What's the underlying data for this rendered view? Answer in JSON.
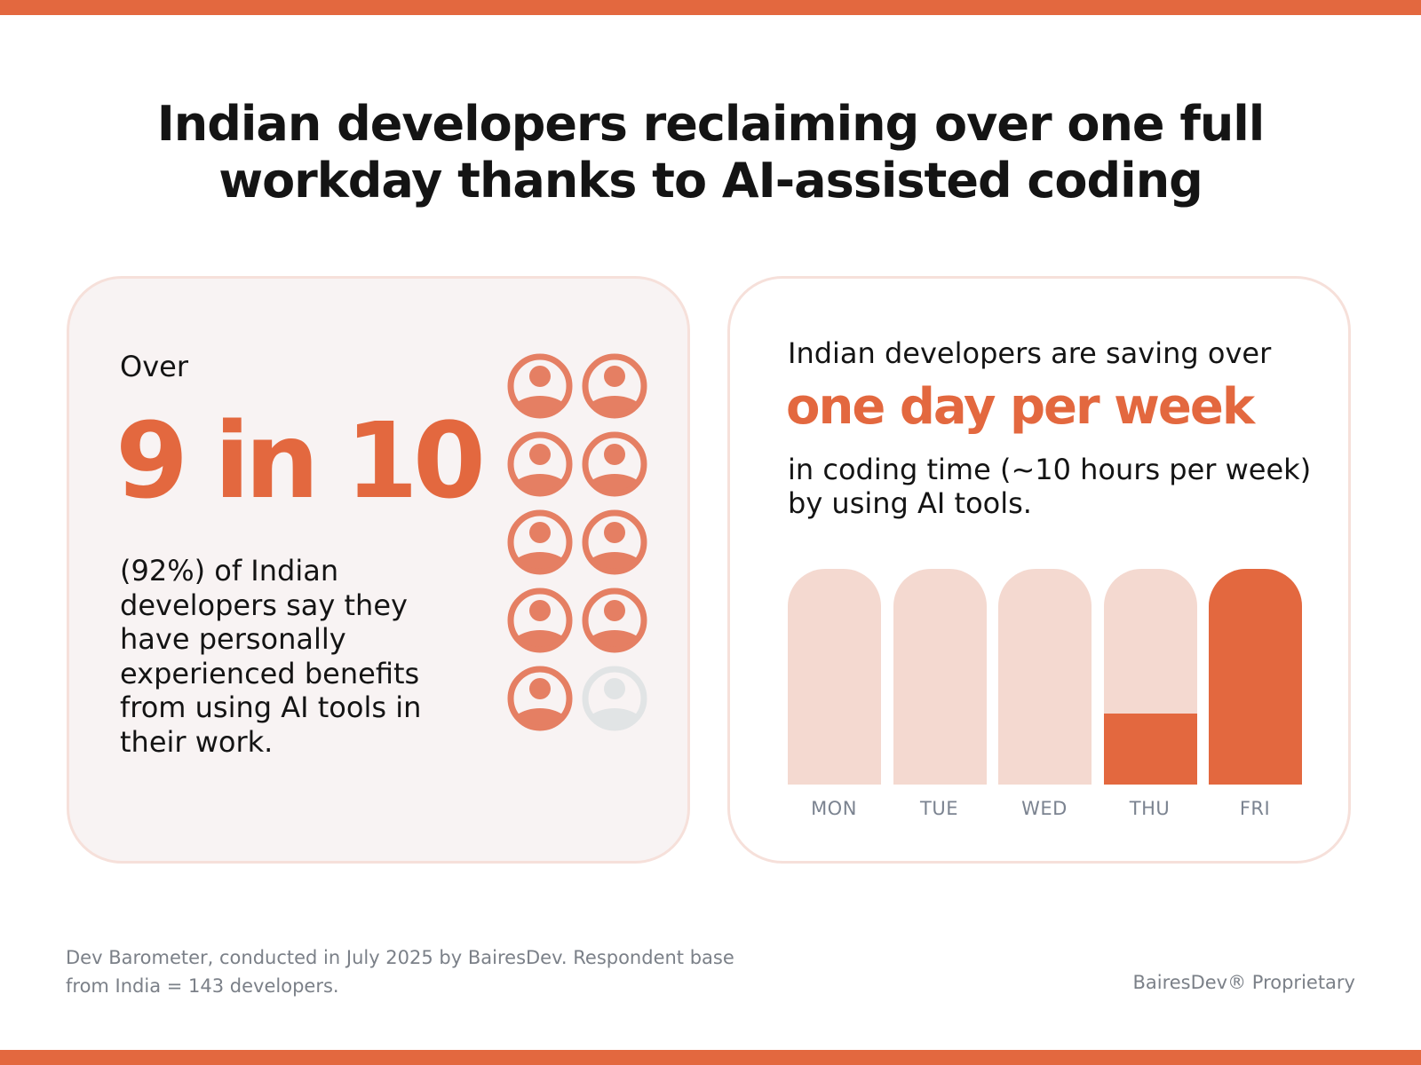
{
  "title": [
    "Indian developers reclaiming over one full",
    "workday thanks to AI-assisted coding"
  ],
  "colors": {
    "accent": "#e3683f",
    "accent_light": "#f4d9d0",
    "icon_inactive": "#e1e4e5",
    "left_card_bg": "#f8f3f3"
  },
  "left_card": {
    "over": "Over",
    "stat": "9 in 10",
    "description": "(92%) of Indian developers say they have personally experienced benefits from using AI tools in their work.",
    "icon_name": "person-circle-icon",
    "icons_total": 10,
    "icons_active": 9
  },
  "right_card": {
    "intro": "Indian developers are saving over",
    "highlight": "one day per week",
    "description": "in coding time (~10 hours per week) by using AI tools."
  },
  "chart_data": {
    "type": "bar",
    "categories": [
      "MON",
      "TUE",
      "WED",
      "THU",
      "FRI"
    ],
    "values": [
      0,
      0,
      0,
      0.33,
      1
    ],
    "ylim": [
      0,
      1
    ]
  },
  "footer": {
    "source_lines": [
      "Dev Barometer, conducted in July 2025 by BairesDev. Respondent base",
      "from India = 143 developers."
    ],
    "proprietary": "BairesDev® Proprietary"
  }
}
